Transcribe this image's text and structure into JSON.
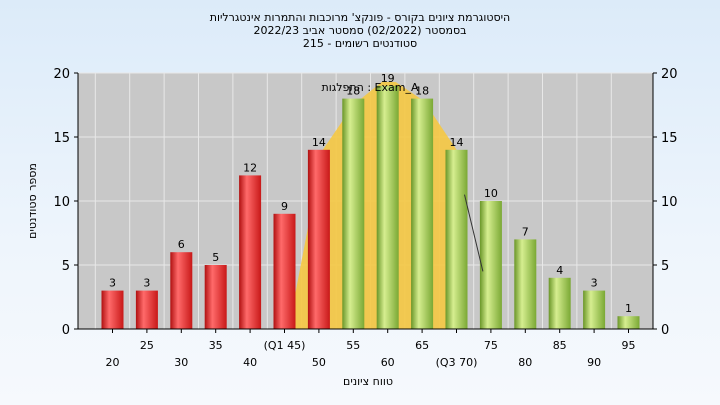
{
  "chart_data": {
    "type": "bar",
    "title_lines": [
      "היסטוגרמת ציונים בקורס - פונקצ' מרוכבות והתמרות אינטגרליות",
      "בסמסטר  (02/2022)  סמסטר אביב 2022/23",
      "סטודנטים רשומים - 215"
    ],
    "xlabel": "טווח ציונים",
    "ylabel": "מספר סטודנטים",
    "ylim": [
      0,
      20
    ],
    "yticks": [
      0,
      5,
      10,
      15,
      20
    ],
    "grid": true,
    "annotation": "התפלגות : Exam_A",
    "categories": [
      "20",
      "25",
      "30",
      "35",
      "40",
      "(Q1 45)",
      "50",
      "55",
      "60",
      "65",
      "(Q3 70)",
      "75",
      "80",
      "85",
      "90",
      "95"
    ],
    "values": [
      3,
      3,
      6,
      5,
      12,
      9,
      14,
      18,
      19,
      18,
      14,
      10,
      7,
      4,
      3,
      1
    ],
    "value_labels": [
      "3",
      "3",
      "6",
      "5",
      "12",
      "9",
      "14",
      "18",
      "19",
      "18",
      "14",
      "10",
      "7",
      "4",
      "3",
      "1"
    ],
    "bar_groups": [
      "red",
      "red",
      "red",
      "red",
      "red",
      "red",
      "red",
      "green",
      "green",
      "green",
      "green",
      "green",
      "green",
      "green",
      "green",
      "green"
    ],
    "colors": {
      "red": "#e02020",
      "red_light": "#ff7070",
      "green": "#8cb840",
      "green_light": "#d4ec8c",
      "plot_bg": "#c8c8c8",
      "overlay": "#f5c842"
    }
  }
}
